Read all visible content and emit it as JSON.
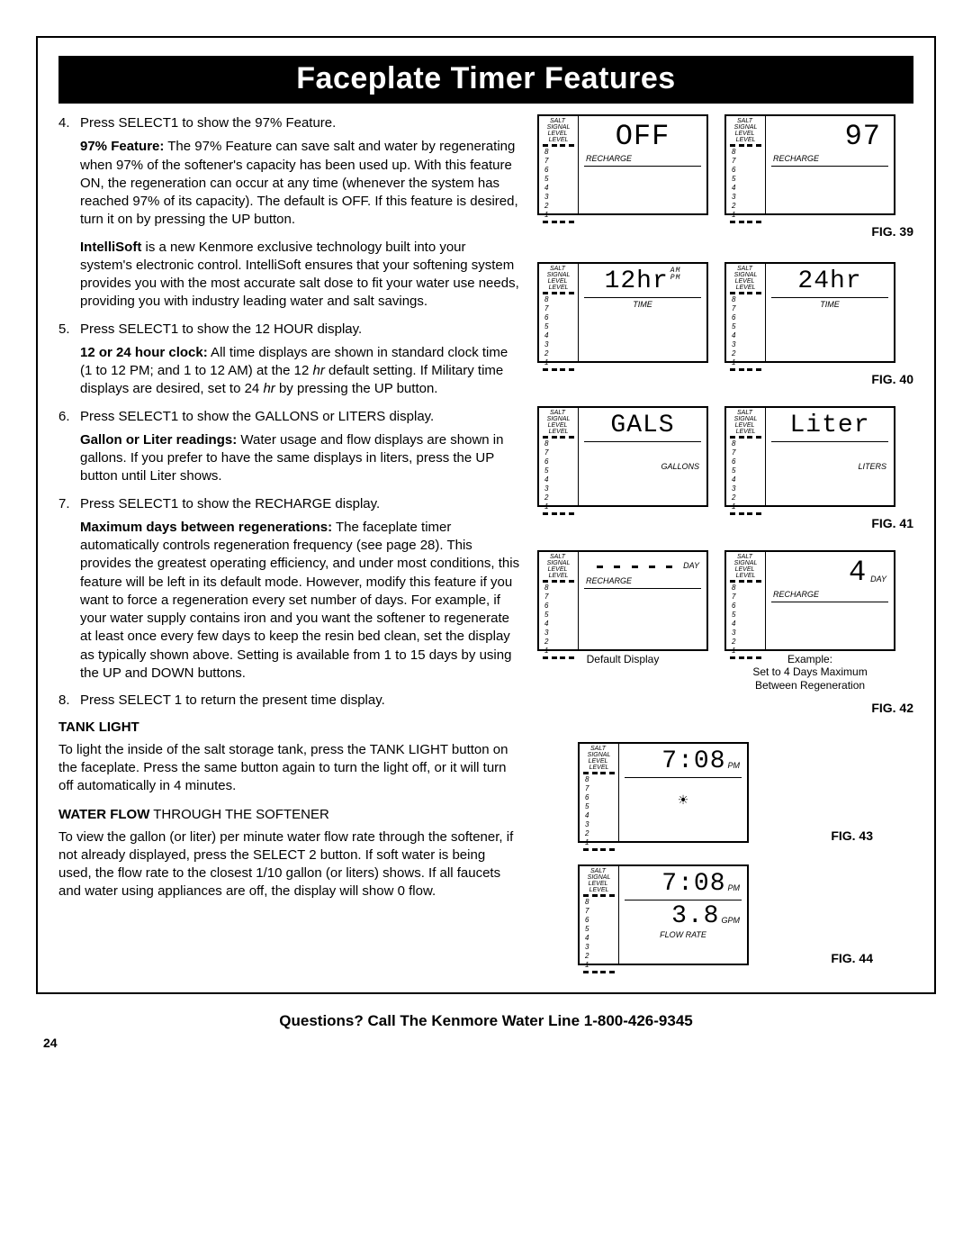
{
  "title": "Faceplate Timer Features",
  "items": [
    {
      "idx": "4.",
      "lead": "Press SELECT1 to show the 97% Feature.",
      "subs": [
        {
          "b": "97% Feature:",
          "t": " The 97% Feature can save salt and water by regenerating when 97% of the softener's capacity has been used up. With this feature ON, the regeneration can occur at any time (whenever the system has reached 97% of its capacity). The default is OFF. If this feature is desired, turn it on by pressing the UP button."
        },
        {
          "b": "IntelliSoft",
          "t": " is a new Kenmore exclusive technology built into your system's electronic control.  IntelliSoft ensures that your softening system provides you with the most accurate salt dose to fit your water use needs, providing you with industry leading water and salt savings."
        }
      ]
    },
    {
      "idx": "5.",
      "lead": "Press SELECT1 to show the 12 HOUR display.",
      "subs": [
        {
          "b": "12 or 24 hour clock:",
          "t": " All time displays are shown in standard clock time (1 to 12 PM; and 1 to 12 AM) at the 12 hr default setting. If Military time displays are desired, set to 24 hr by pressing the UP button."
        }
      ]
    },
    {
      "idx": "6.",
      "lead": "Press SELECT1 to show the GALLONS or LITERS display.",
      "subs": [
        {
          "b": "Gallon or Liter readings:",
          "t": " Water usage and flow displays are shown in gallons. If you prefer to have the same displays in liters, press the UP button until Liter shows."
        }
      ]
    },
    {
      "idx": "7.",
      "lead": "Press SELECT1 to show the RECHARGE display.",
      "subs": [
        {
          "b": "Maximum days between regenerations:",
          "t": " The faceplate timer automatically controls regeneration frequency (see page 28). This provides the greatest operating efficiency, and under most conditions, this feature will be left in its default mode.  However, modify this feature if you want to force a regeneration every set number of days. For example, if your water supply contains iron and you want the softener to regenerate at least once every few days to keep the resin bed clean, set the display as typically shown above. Setting is available from 1 to 15 days by using the UP and DOWN buttons."
        }
      ]
    },
    {
      "idx": "8.",
      "lead": "Press SELECT 1 to return the present time display.",
      "subs": []
    }
  ],
  "tank": {
    "head": "TANK LIGHT",
    "body": "To light the inside of the salt storage tank, press the TANK LIGHT button on the faceplate. Press the same button again to turn the light off, or it will turn off automatically in 4 minutes."
  },
  "flow": {
    "head_b": "WATER FLOW",
    "head_r": " THROUGH THE SOFTENER",
    "body": "To view the gallon (or liter) per minute water flow rate through the softener, if not already displayed, press the SELECT 2 button. If soft water is being used, the flow rate to the closest 1/10 gallon (or liters) shows. If all faucets and water using appliances are off, the display will show 0 flow."
  },
  "salt_nums": [
    "8",
    "7",
    "6",
    "5",
    "4",
    "3",
    "2",
    "1"
  ],
  "salt_h1": "SALT",
  "salt_h2": "SIGNAL",
  "salt_h3": "LEVEL",
  "figs": {
    "f39": "FIG. 39",
    "f40": "FIG. 40",
    "f41": "FIG. 41",
    "f42": "FIG. 42",
    "f43": "FIG. 43",
    "f44": "FIG. 44"
  },
  "lcd": {
    "off": "OFF",
    "n97": "97",
    "recharge": "RECHARGE",
    "h12": "12hr",
    "h24": "24hr",
    "am": "AM",
    "pm": "PM",
    "time": "TIME",
    "gals": "GALS",
    "liter": "Liter",
    "gallons": "GALLONS",
    "liters": "LITERS",
    "dashes": "– – – – –",
    "day": "DAY",
    "four": "4",
    "t708": "7:08",
    "rate": "3.8",
    "gpm": "GPM",
    "flowrate": "FLOW RATE"
  },
  "caps": {
    "default": "Default Display",
    "ex1": "Example:",
    "ex2": "Set to 4 Days Maximum",
    "ex3": "Between Regeneration"
  },
  "footer": "Questions? Call The Kenmore Water Line 1-800-426-9345",
  "page": "24"
}
